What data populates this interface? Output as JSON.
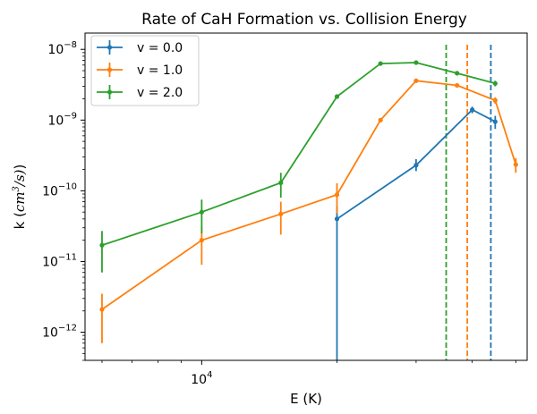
{
  "chart_data": {
    "type": "line",
    "title": "Rate of CaH Formation vs. Collision Energy",
    "xlabel": "E (K)",
    "ylabel_prefix": "k (",
    "ylabel_unit_base": "cm",
    "ylabel_unit_exp": "3",
    "ylabel_unit_rest": "/s)",
    "ylabel_suffix": ")",
    "xscale": "log",
    "yscale": "log",
    "xlim": [
      5500,
      53000
    ],
    "ylim": [
      4e-13,
      1.7e-08
    ],
    "grid": false,
    "legend_position": "upper-left",
    "x_ticks": [
      {
        "value": 10000,
        "base": "10",
        "exp": "4"
      }
    ],
    "y_ticks": [
      {
        "value": 1e-12,
        "base": "10",
        "exp": "−12"
      },
      {
        "value": 1e-11,
        "base": "10",
        "exp": "−11"
      },
      {
        "value": 1e-10,
        "base": "10",
        "exp": "−10"
      },
      {
        "value": 1e-09,
        "base": "10",
        "exp": "−9"
      },
      {
        "value": 1e-08,
        "base": "10",
        "exp": "−8"
      }
    ],
    "series": [
      {
        "name": "v = 0.0",
        "color": "#1f77b4",
        "x": [
          20000,
          30000,
          40000,
          45000
        ],
        "y": [
          4e-11,
          2.3e-10,
          1.4e-09,
          9.5e-10
        ],
        "yerr_low": [
          4e-11,
          4e-11,
          1.5e-10,
          2e-10
        ],
        "yerr_high": [
          2e-11,
          5e-11,
          1.5e-10,
          2e-10
        ],
        "vline": 44000
      },
      {
        "name": "v = 1.0",
        "color": "#ff7f0e",
        "x": [
          6000,
          10000,
          15000,
          20000,
          25000,
          30000,
          37000,
          45000,
          50000
        ],
        "y": [
          2.1e-12,
          2e-11,
          4.7e-11,
          8.8e-11,
          1e-09,
          3.6e-09,
          3.1e-09,
          1.9e-09,
          2.35e-10
        ],
        "yerr_low": [
          1.4e-12,
          1.1e-11,
          2.3e-11,
          4e-11,
          5e-11,
          1.5e-10,
          2e-10,
          2e-10,
          5.5e-11
        ],
        "yerr_high": [
          1.4e-12,
          1.1e-11,
          2.3e-11,
          4e-11,
          5e-11,
          1.5e-10,
          2e-10,
          2e-10,
          5.5e-11
        ],
        "vline": 39000
      },
      {
        "name": "v = 2.0",
        "color": "#2ca02c",
        "x": [
          6000,
          10000,
          15000,
          20000,
          25000,
          30000,
          37000,
          45000
        ],
        "y": [
          1.7e-11,
          5e-11,
          1.3e-10,
          2.15e-09,
          6.3e-09,
          6.5e-09,
          4.6e-09,
          3.3e-09
        ],
        "yerr_low": [
          1e-11,
          2.5e-11,
          5e-11,
          1e-10,
          2e-10,
          2e-10,
          2e-10,
          3e-10
        ],
        "yerr_high": [
          1e-11,
          2.5e-11,
          5e-11,
          1e-10,
          2e-10,
          2e-10,
          2e-10,
          3e-10
        ],
        "vline": 35000
      }
    ]
  }
}
